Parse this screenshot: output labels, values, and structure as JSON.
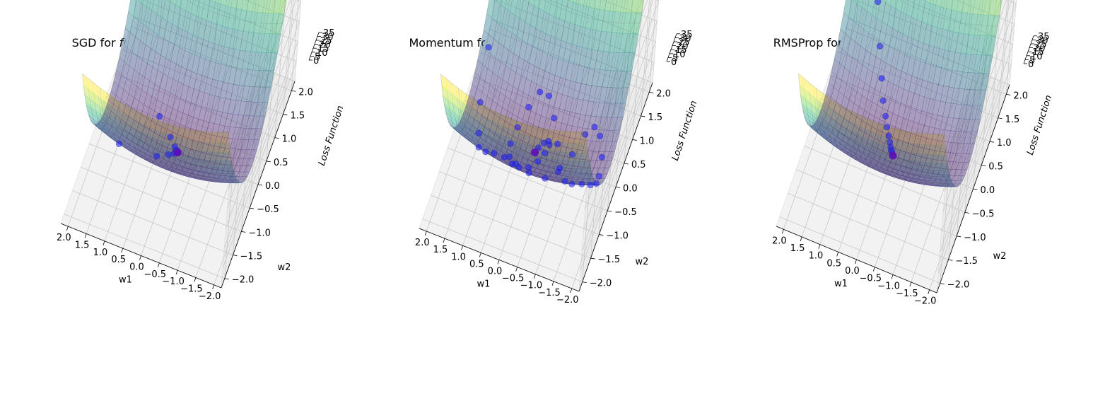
{
  "chart_data": [
    {
      "type": "surface",
      "title_prefix": "SGD for ",
      "title_formula": "f(w1, w2) = w1² + 8 * w2²",
      "xlabel": "w1",
      "ylabel": "w2",
      "zlabel": "Loss Function",
      "xlim": [
        -2.2,
        2.2
      ],
      "ylim": [
        -2.2,
        2.2
      ],
      "zlim": [
        0,
        35
      ],
      "x_ticks": [
        "−2.0",
        "−1.5",
        "−1.0",
        "−0.5",
        "0.0",
        "0.5",
        "1.0",
        "1.5",
        "2.0"
      ],
      "y_ticks": [
        "−2.0",
        "−1.5",
        "−1.0",
        "−0.5",
        "0.0",
        "0.5",
        "1.0",
        "1.5",
        "2.0"
      ],
      "z_ticks": [
        "0",
        "5",
        "10",
        "15",
        "20",
        "25",
        "30",
        "35"
      ],
      "colormap": "viridis",
      "start_color": "#e0002a",
      "path_color": "#1a1aff",
      "path": [
        [
          1.5,
          1.7
        ],
        [
          1.3,
          -0.8
        ],
        [
          0.7,
          0.4
        ],
        [
          0.45,
          -0.3
        ],
        [
          0.3,
          0.2
        ],
        [
          0.2,
          -0.12
        ],
        [
          0.12,
          0.08
        ],
        [
          0.08,
          -0.05
        ],
        [
          0.05,
          0.03
        ],
        [
          0.03,
          -0.02
        ],
        [
          0.02,
          0.01
        ],
        [
          0.01,
          0.0
        ],
        [
          0.0,
          0.0
        ]
      ]
    },
    {
      "type": "surface",
      "title_prefix": "Momentum for ",
      "title_formula": "f(w1, w2) = w1² + 8 * w2²",
      "xlabel": "w1",
      "ylabel": "w2",
      "zlabel": "Loss Function",
      "xlim": [
        -2.2,
        2.2
      ],
      "ylim": [
        -2.2,
        2.2
      ],
      "zlim": [
        0,
        35
      ],
      "x_ticks": [
        "−2.0",
        "−1.5",
        "−1.0",
        "−0.5",
        "0.0",
        "0.5",
        "1.0",
        "1.5",
        "2.0"
      ],
      "y_ticks": [
        "−2.0",
        "−1.5",
        "−1.0",
        "−0.5",
        "0.0",
        "0.5",
        "1.0",
        "1.5",
        "2.0"
      ],
      "z_ticks": [
        "0",
        "5",
        "10",
        "15",
        "20",
        "25",
        "30",
        "35"
      ],
      "colormap": "viridis",
      "start_color": "#e0002a",
      "path_color": "#1a1aff",
      "path": [
        [
          2.0,
          1.7
        ],
        [
          1.9,
          1.4
        ],
        [
          1.8,
          0.9
        ],
        [
          1.7,
          0.3
        ],
        [
          1.5,
          -0.2
        ],
        [
          1.3,
          -0.7
        ],
        [
          1.0,
          -1.0
        ],
        [
          0.7,
          -1.2
        ],
        [
          0.4,
          -1.25
        ],
        [
          0.1,
          -1.2
        ],
        [
          -0.2,
          -1.0
        ],
        [
          -0.5,
          -0.6
        ],
        [
          -0.7,
          -0.2
        ],
        [
          -0.9,
          0.2
        ],
        [
          -1.1,
          0.5
        ],
        [
          -1.3,
          0.6
        ],
        [
          -1.5,
          0.5
        ],
        [
          -1.7,
          0.2
        ],
        [
          -1.8,
          -0.2
        ],
        [
          -1.85,
          -0.5
        ],
        [
          -1.8,
          -0.8
        ],
        [
          -1.6,
          -0.9
        ],
        [
          -1.3,
          -0.8
        ],
        [
          -1.0,
          -0.5
        ],
        [
          -0.7,
          -0.1
        ],
        [
          -0.45,
          0.3
        ],
        [
          -0.2,
          0.6
        ],
        [
          0.05,
          0.8
        ],
        [
          0.3,
          0.8
        ],
        [
          0.5,
          0.6
        ],
        [
          0.65,
          0.3
        ],
        [
          0.7,
          0.0
        ],
        [
          0.6,
          -0.3
        ],
        [
          0.45,
          -0.5
        ],
        [
          0.25,
          -0.5
        ],
        [
          0.05,
          -0.35
        ],
        [
          -0.1,
          -0.1
        ],
        [
          -0.2,
          0.1
        ],
        [
          -0.25,
          0.25
        ],
        [
          -0.2,
          0.3
        ],
        [
          -0.1,
          0.25
        ],
        [
          0.0,
          0.15
        ],
        [
          0.05,
          0.05
        ]
      ]
    },
    {
      "type": "surface",
      "title_prefix": "RMSProp for ",
      "title_formula": "f(w1, w2) = w1² + 8 * w2²",
      "xlabel": "w1",
      "ylabel": "w2",
      "zlabel": "Loss Function",
      "xlim": [
        -2.2,
        2.2
      ],
      "ylim": [
        -2.2,
        2.2
      ],
      "zlim": [
        0,
        35
      ],
      "x_ticks": [
        "−2.0",
        "−1.5",
        "−1.0",
        "−0.5",
        "0.0",
        "0.5",
        "1.0",
        "1.5",
        "2.0"
      ],
      "y_ticks": [
        "−2.0",
        "−1.5",
        "−1.0",
        "−0.5",
        "0.0",
        "0.5",
        "1.0",
        "1.5",
        "2.0"
      ],
      "z_ticks": [
        "0",
        "5",
        "10",
        "15",
        "20",
        "25",
        "30",
        "35"
      ],
      "colormap": "viridis",
      "start_color": "#e0002a",
      "path_color": "#1a1aff",
      "path": [
        [
          1.5,
          1.7
        ],
        [
          1.2,
          1.4
        ],
        [
          0.95,
          1.1
        ],
        [
          0.75,
          0.85
        ],
        [
          0.6,
          0.65
        ],
        [
          0.45,
          0.5
        ],
        [
          0.35,
          0.38
        ],
        [
          0.25,
          0.28
        ],
        [
          0.18,
          0.2
        ],
        [
          0.12,
          0.13
        ],
        [
          0.08,
          0.08
        ],
        [
          0.04,
          0.04
        ],
        [
          0.0,
          0.0
        ]
      ]
    }
  ]
}
